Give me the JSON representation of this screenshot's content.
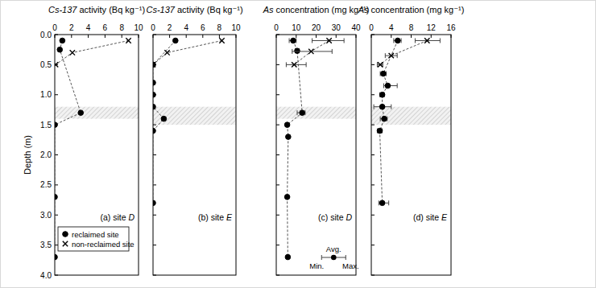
{
  "chart_data": [
    {
      "type": "scatter",
      "xlabel": "Cs-137 activity (Bq kg⁻¹)",
      "ylabel": "Depth (m)",
      "panel_label": "(a) site D",
      "xlim": [
        0,
        10
      ],
      "xticks": [
        0,
        2,
        4,
        6,
        8,
        10
      ],
      "ylim": [
        4,
        0
      ],
      "yticks": [
        {
          "value": 0,
          "label": "0.0"
        },
        {
          "value": 0.5,
          "label": "0.5"
        },
        {
          "value": 1,
          "label": "1.0"
        },
        {
          "value": 1.5,
          "label": "1.5"
        },
        {
          "value": 2,
          "label": "2.0"
        },
        {
          "value": 2.5,
          "label": "2.5"
        },
        {
          "value": 3,
          "label": "3.0"
        },
        {
          "value": 3.5,
          "label": "3.5"
        },
        {
          "value": 4,
          "label": "4.0"
        }
      ],
      "hatched_band": [
        1.2,
        1.4
      ],
      "legend": "lower left",
      "series": [
        {
          "name": "reclaimed site",
          "marker": "circle",
          "line_style": "dashed",
          "color": "#000000",
          "x": [
            0.9,
            0.6,
            3.1,
            0,
            0,
            0
          ],
          "values": [
            0.1,
            0.25,
            1.3,
            1.5,
            2.7,
            3.7
          ]
        },
        {
          "name": "non-reclaimed site",
          "marker": "x",
          "line_style": "dashed",
          "color": "#000000",
          "x": [
            8.8,
            2.1,
            0.1
          ],
          "values": [
            0.1,
            0.3,
            0.5
          ]
        }
      ]
    },
    {
      "type": "scatter",
      "xlabel": "Cs-137 activity (Bq kg⁻¹)",
      "panel_label": "(b) site E",
      "xlim": [
        0,
        10
      ],
      "xticks": [
        0,
        2,
        4,
        6,
        8,
        10
      ],
      "ylim": [
        4,
        0
      ],
      "yticks": [
        0,
        0.5,
        1,
        1.5,
        2,
        2.5,
        3,
        3.5,
        4
      ],
      "tick_labels": "x",
      "hatched_band": [
        1.2,
        1.5
      ],
      "series": [
        {
          "name": "reclaimed site",
          "marker": "circle",
          "line_style": "dashed",
          "color": "#000000",
          "x": [
            2.7,
            0,
            0,
            0,
            0,
            1.3,
            0,
            0
          ],
          "values": [
            0.1,
            0.5,
            0.8,
            1.0,
            1.2,
            1.4,
            1.6,
            2.8
          ]
        },
        {
          "name": "non-reclaimed site",
          "marker": "x",
          "line_style": "dashed",
          "color": "#000000",
          "x": [
            8.3,
            1.7,
            0
          ],
          "values": [
            0.1,
            0.3,
            0.5
          ]
        }
      ]
    },
    {
      "type": "scatter",
      "xlabel": "As concentration (mg kg⁻¹)",
      "panel_label": "(c) site D",
      "xlim": [
        0,
        40
      ],
      "xticks": [
        0,
        10,
        20,
        30,
        40
      ],
      "ylim": [
        4,
        0
      ],
      "yticks": [
        0,
        0.5,
        1,
        1.5,
        2,
        2.5,
        3,
        3.5,
        4
      ],
      "tick_labels": "x",
      "hatched_band": [
        1.2,
        1.4
      ],
      "error_bar_key": [
        "Avg.",
        "Min.",
        "Max."
      ],
      "series": [
        {
          "name": "reclaimed site",
          "marker": "circle",
          "line_style": "dashed",
          "color": "#000000",
          "x": [
            8.5,
            10.5,
            13,
            5.5,
            6,
            5.5,
            5.8
          ],
          "values": [
            0.1,
            0.27,
            1.3,
            1.5,
            1.7,
            2.7,
            3.7
          ],
          "x_min": [
            6.5,
            9.5,
            10.5,
            5,
            5.5,
            4.8,
            5.3
          ],
          "x_max": [
            10,
            11.5,
            14.5,
            6,
            6.5,
            6.2,
            6.3
          ]
        },
        {
          "name": "non-reclaimed site",
          "marker": "x",
          "line_style": "dashed",
          "color": "#000000",
          "x": [
            26.5,
            17.5,
            9
          ],
          "values": [
            0.1,
            0.28,
            0.5
          ],
          "x_min": [
            18,
            8,
            5
          ],
          "x_max": [
            34,
            28,
            15
          ]
        }
      ]
    },
    {
      "type": "scatter",
      "xlabel": "As concentration (mg kg⁻¹)",
      "panel_label": "(d) site E",
      "xlim": [
        0,
        16
      ],
      "xticks": [
        0,
        4,
        8,
        12,
        16
      ],
      "ylim": [
        4,
        0
      ],
      "yticks": [
        0,
        0.5,
        1,
        1.5,
        2,
        2.5,
        3,
        3.5,
        4
      ],
      "tick_labels": "x",
      "hatched_band": [
        1.2,
        1.5
      ],
      "series": [
        {
          "name": "reclaimed site",
          "marker": "circle",
          "line_style": "dashed",
          "color": "#000000",
          "x": [
            5.3,
            2.4,
            3.3,
            2.2,
            2.2,
            2.6,
            1.7,
            2.2
          ],
          "values": [
            0.1,
            0.65,
            0.85,
            1.0,
            1.2,
            1.4,
            1.6,
            2.8
          ],
          "x_min": [
            4.5,
            1.8,
            2.5,
            1.7,
            0.5,
            1.8,
            1.2,
            1.5
          ],
          "x_max": [
            6,
            3,
            5.2,
            2.6,
            4,
            3.2,
            2.2,
            3.5
          ]
        },
        {
          "name": "non-reclaimed site",
          "marker": "x",
          "line_style": "dashed",
          "color": "#000000",
          "x": [
            11.2,
            4,
            1.8
          ],
          "values": [
            0.1,
            0.35,
            0.5
          ],
          "x_min": [
            8.8,
            2.8,
            1.2
          ],
          "x_max": [
            13.8,
            5.2,
            2.3
          ]
        }
      ]
    }
  ]
}
